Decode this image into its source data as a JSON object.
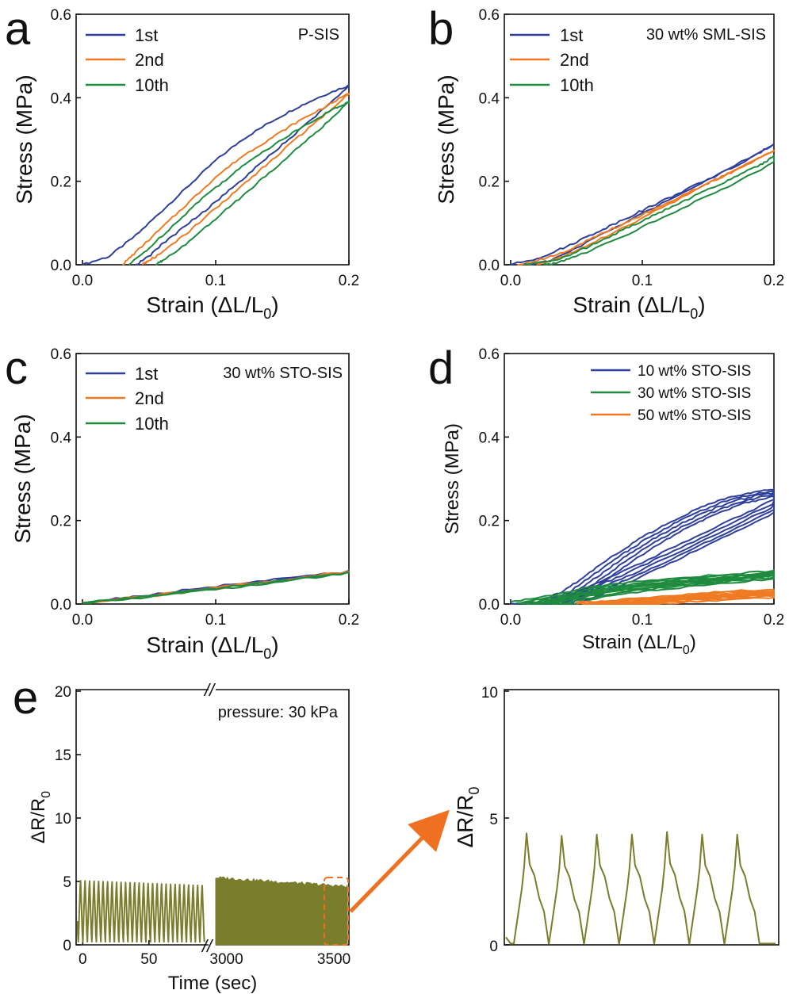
{
  "colors": {
    "blue": "#2e3f9b",
    "orange": "#ef7a22",
    "green": "#1e8b3e",
    "olive": "#7a7d2c",
    "arrow": "#f07022"
  },
  "chart_data": [
    {
      "panel": "a",
      "type": "line",
      "annotation": "P-SIS",
      "xlabel": "Strain (ΔL/L0)",
      "ylabel": "Stress (MPa)",
      "xlim": [
        0,
        0.2
      ],
      "ylim": [
        0,
        0.6
      ],
      "xticks": [
        "0.0",
        "0.1",
        "0.2"
      ],
      "yticks": [
        "0.0",
        "0.2",
        "0.4",
        "0.6"
      ],
      "legend_position": "top-left",
      "series": [
        {
          "name": "1st",
          "color": "#2e3f9b",
          "loading": {
            "x": [
              0,
              0.02,
              0.04,
              0.06,
              0.08,
              0.1,
              0.12,
              0.14,
              0.16,
              0.18,
              0.2
            ],
            "y": [
              0,
              0.02,
              0.07,
              0.13,
              0.19,
              0.25,
              0.3,
              0.34,
              0.375,
              0.405,
              0.43
            ]
          },
          "unloading": {
            "x": [
              0.2,
              0.18,
              0.16,
              0.14,
              0.12,
              0.1,
              0.08,
              0.06,
              0.05,
              0.04
            ],
            "y": [
              0.43,
              0.37,
              0.315,
              0.26,
              0.205,
              0.15,
              0.1,
              0.05,
              0.02,
              0
            ]
          }
        },
        {
          "name": "2nd",
          "color": "#ef7a22",
          "loading": {
            "x": [
              0.03,
              0.04,
              0.06,
              0.08,
              0.1,
              0.12,
              0.14,
              0.16,
              0.18,
              0.2
            ],
            "y": [
              0,
              0.03,
              0.09,
              0.15,
              0.21,
              0.26,
              0.3,
              0.34,
              0.375,
              0.41
            ]
          },
          "unloading": {
            "x": [
              0.2,
              0.18,
              0.16,
              0.14,
              0.12,
              0.1,
              0.08,
              0.06,
              0.05,
              0.045
            ],
            "y": [
              0.41,
              0.355,
              0.3,
              0.245,
              0.19,
              0.135,
              0.08,
              0.03,
              0.01,
              0
            ]
          }
        },
        {
          "name": "10th",
          "color": "#1e8b3e",
          "loading": {
            "x": [
              0.035,
              0.05,
              0.07,
              0.09,
              0.11,
              0.13,
              0.15,
              0.17,
              0.19,
              0.2
            ],
            "y": [
              0,
              0.04,
              0.1,
              0.16,
              0.21,
              0.26,
              0.3,
              0.34,
              0.375,
              0.39
            ]
          },
          "unloading": {
            "x": [
              0.2,
              0.18,
              0.16,
              0.14,
              0.12,
              0.1,
              0.08,
              0.06,
              0.055
            ],
            "y": [
              0.39,
              0.33,
              0.275,
              0.22,
              0.165,
              0.11,
              0.055,
              0.01,
              0
            ]
          }
        }
      ]
    },
    {
      "panel": "b",
      "type": "line",
      "annotation": "30 wt% SML-SIS",
      "xlabel": "Strain (ΔL/L0)",
      "ylabel": "Stress (MPa)",
      "xlim": [
        0,
        0.2
      ],
      "ylim": [
        0,
        0.6
      ],
      "xticks": [
        "0.0",
        "0.1",
        "0.2"
      ],
      "yticks": [
        "0.0",
        "0.2",
        "0.4",
        "0.6"
      ],
      "legend_position": "top-left",
      "series": [
        {
          "name": "1st",
          "color": "#2e3f9b",
          "loading": {
            "x": [
              0,
              0.02,
              0.04,
              0.06,
              0.08,
              0.1,
              0.12,
              0.14,
              0.16,
              0.18,
              0.2
            ],
            "y": [
              0,
              0.015,
              0.04,
              0.07,
              0.1,
              0.13,
              0.16,
              0.19,
              0.22,
              0.25,
              0.29
            ]
          },
          "unloading": {
            "x": [
              0.2,
              0.16,
              0.12,
              0.08,
              0.05,
              0.03,
              0.015
            ],
            "y": [
              0.29,
              0.22,
              0.155,
              0.09,
              0.04,
              0.01,
              0
            ]
          }
        },
        {
          "name": "2nd",
          "color": "#ef7a22",
          "loading": {
            "x": [
              0.005,
              0.02,
              0.04,
              0.06,
              0.08,
              0.1,
              0.12,
              0.14,
              0.16,
              0.18,
              0.2
            ],
            "y": [
              0,
              0.01,
              0.03,
              0.06,
              0.09,
              0.12,
              0.15,
              0.18,
              0.21,
              0.24,
              0.275
            ]
          },
          "unloading": {
            "x": [
              0.2,
              0.16,
              0.12,
              0.08,
              0.05,
              0.03,
              0.02
            ],
            "y": [
              0.275,
              0.21,
              0.145,
              0.08,
              0.035,
              0.008,
              0
            ]
          }
        },
        {
          "name": "10th",
          "color": "#1e8b3e",
          "loading": {
            "x": [
              0.01,
              0.03,
              0.05,
              0.07,
              0.09,
              0.11,
              0.13,
              0.15,
              0.17,
              0.19,
              0.2
            ],
            "y": [
              0,
              0.008,
              0.03,
              0.06,
              0.09,
              0.12,
              0.15,
              0.18,
              0.21,
              0.24,
              0.26
            ]
          },
          "unloading": {
            "x": [
              0.2,
              0.16,
              0.12,
              0.08,
              0.05,
              0.035,
              0.025
            ],
            "y": [
              0.245,
              0.18,
              0.12,
              0.06,
              0.02,
              0.005,
              0
            ]
          }
        }
      ]
    },
    {
      "panel": "c",
      "type": "line",
      "annotation": "30 wt% STO-SIS",
      "xlabel": "Strain (ΔL/L0)",
      "ylabel": "Stress (MPa)",
      "xlim": [
        0,
        0.2
      ],
      "ylim": [
        0,
        0.6
      ],
      "xticks": [
        "0.0",
        "0.1",
        "0.2"
      ],
      "yticks": [
        "0.0",
        "0.2",
        "0.4",
        "0.6"
      ],
      "legend_position": "top-left",
      "series": [
        {
          "name": "1st",
          "color": "#2e3f9b",
          "loading": {
            "x": [
              0,
              0.05,
              0.1,
              0.15,
              0.2
            ],
            "y": [
              0.003,
              0.022,
              0.042,
              0.06,
              0.078
            ]
          },
          "unloading": {
            "x": [
              0.2,
              0.15,
              0.1,
              0.05,
              0
            ],
            "y": [
              0.078,
              0.057,
              0.038,
              0.019,
              0.003
            ]
          }
        },
        {
          "name": "2nd",
          "color": "#ef7a22",
          "loading": {
            "x": [
              0,
              0.05,
              0.1,
              0.15,
              0.2
            ],
            "y": [
              0.002,
              0.02,
              0.04,
              0.058,
              0.077
            ]
          },
          "unloading": {
            "x": [
              0.2,
              0.15,
              0.1,
              0.05,
              0
            ],
            "y": [
              0.077,
              0.056,
              0.037,
              0.018,
              0.002
            ]
          }
        },
        {
          "name": "10th",
          "color": "#1e8b3e",
          "loading": {
            "x": [
              0,
              0.05,
              0.1,
              0.15,
              0.2
            ],
            "y": [
              0.002,
              0.019,
              0.038,
              0.056,
              0.075
            ]
          },
          "unloading": {
            "x": [
              0.2,
              0.15,
              0.1,
              0.05,
              0
            ],
            "y": [
              0.075,
              0.054,
              0.035,
              0.017,
              0.002
            ]
          }
        }
      ]
    },
    {
      "panel": "d",
      "type": "line",
      "annotation": "",
      "xlabel": "Strain (ΔL/L0)",
      "ylabel": "Stress (MPa)",
      "xlim": [
        0,
        0.2
      ],
      "ylim": [
        0,
        0.6
      ],
      "xticks": [
        "0.0",
        "0.1",
        "0.2"
      ],
      "yticks": [
        "0.0",
        "0.2",
        "0.4",
        "0.6"
      ],
      "legend_position": "top-right",
      "series": [
        {
          "name": "10 wt% STO-SIS",
          "color": "#2e3f9b",
          "cycles": 5,
          "loading": {
            "x": [
              0,
              0.02,
              0.04,
              0.06,
              0.08,
              0.1,
              0.12,
              0.14,
              0.16,
              0.18,
              0.2
            ],
            "y": [
              0,
              0.005,
              0.03,
              0.075,
              0.12,
              0.16,
              0.195,
              0.225,
              0.25,
              0.265,
              0.275
            ]
          },
          "unloading": {
            "x": [
              0.2,
              0.16,
              0.12,
              0.08,
              0.05,
              0.03,
              0.02
            ],
            "y": [
              0.25,
              0.19,
              0.13,
              0.07,
              0.03,
              0.005,
              0
            ]
          }
        },
        {
          "name": "30 wt% STO-SIS",
          "color": "#1e8b3e",
          "cycles": 5,
          "loading": {
            "x": [
              0,
              0.03,
              0.06,
              0.1,
              0.15,
              0.2
            ],
            "y": [
              0.005,
              0.02,
              0.04,
              0.055,
              0.068,
              0.08
            ]
          },
          "unloading": {
            "x": [
              0.2,
              0.15,
              0.1,
              0.06,
              0.03,
              0.02
            ],
            "y": [
              0.075,
              0.06,
              0.045,
              0.03,
              0.01,
              0.003
            ]
          }
        },
        {
          "name": "50 wt% STO-SIS",
          "color": "#ef7a22",
          "cycles": 5,
          "loading": {
            "x": [
              0.05,
              0.08,
              0.12,
              0.16,
              0.2
            ],
            "y": [
              0.003,
              0.01,
              0.02,
              0.03,
              0.035
            ]
          },
          "unloading": {
            "x": [
              0.2,
              0.16,
              0.12,
              0.08,
              0.05
            ],
            "y": [
              0.028,
              0.022,
              0.015,
              0.007,
              0
            ]
          }
        }
      ]
    },
    {
      "panel": "e",
      "type": "line",
      "annotation": "pressure: 30 kPa",
      "xlabel": "Time (sec)",
      "ylabel": "ΔR/R0",
      "broken_x_axis": true,
      "segments": [
        {
          "xlim": [
            -5,
            95
          ],
          "xticks": [
            "0",
            "50"
          ]
        },
        {
          "xlim": [
            2950,
            3570
          ],
          "xticks": [
            "3000",
            "3500"
          ]
        }
      ],
      "ylim": [
        0,
        20
      ],
      "yticks": [
        "0",
        "5",
        "10",
        "15",
        "20"
      ],
      "series": [
        {
          "name": "",
          "color": "#7a7d2c",
          "period_sec": 3.4,
          "peak": [
            5.3,
            4.6
          ],
          "trough": 0
        }
      ],
      "highlight": "dashed box around last ~100 s, arrow to zoom panel"
    },
    {
      "panel": "e-zoom",
      "type": "line",
      "xlabel": "",
      "ylabel": "ΔR/R0",
      "ylim": [
        0,
        10
      ],
      "yticks": [
        "0",
        "5",
        "10"
      ],
      "series": [
        {
          "name": "",
          "color": "#7a7d2c",
          "peaks": [
            4.4,
            4.3,
            4.35,
            4.35,
            4.45,
            4.35,
            4.35
          ],
          "trough": 0
        }
      ]
    }
  ],
  "panels": {
    "a": {
      "letter": "a",
      "ylabel": "Stress (MPa)",
      "xlabel_main": "Strain (ΔL/L",
      "xlabel_sub": "0",
      "xlabel_end": ")",
      "legend": [
        "1st",
        "2nd",
        "10th"
      ],
      "annotation": "P-SIS"
    },
    "b": {
      "letter": "b",
      "ylabel": "Stress (MPa)",
      "xlabel_main": "Strain (ΔL/L",
      "xlabel_sub": "0",
      "xlabel_end": ")",
      "legend": [
        "1st",
        "2nd",
        "10th"
      ],
      "annotation": "30 wt% SML-SIS"
    },
    "c": {
      "letter": "c",
      "ylabel": "Stress (MPa)",
      "xlabel_main": "Strain (ΔL/L",
      "xlabel_sub": "0",
      "xlabel_end": ")",
      "legend": [
        "1st",
        "2nd",
        "10th"
      ],
      "annotation": "30 wt% STO-SIS"
    },
    "d": {
      "letter": "d",
      "ylabel": "Stress (MPa)",
      "xlabel_main": "Strain (ΔL/L",
      "xlabel_sub": "0",
      "xlabel_end": ")",
      "legend": [
        "10 wt% STO-SIS",
        "30 wt% STO-SIS",
        "50 wt% STO-SIS"
      ]
    },
    "e": {
      "letter": "e",
      "ylabel_main": "ΔR/R",
      "ylabel_sub": "0",
      "xlabel": "Time (sec)",
      "annotation": "pressure: 30 kPa",
      "break_mark": "//"
    },
    "ez": {
      "ylabel_main": "ΔR/R",
      "ylabel_sub": "0"
    }
  }
}
